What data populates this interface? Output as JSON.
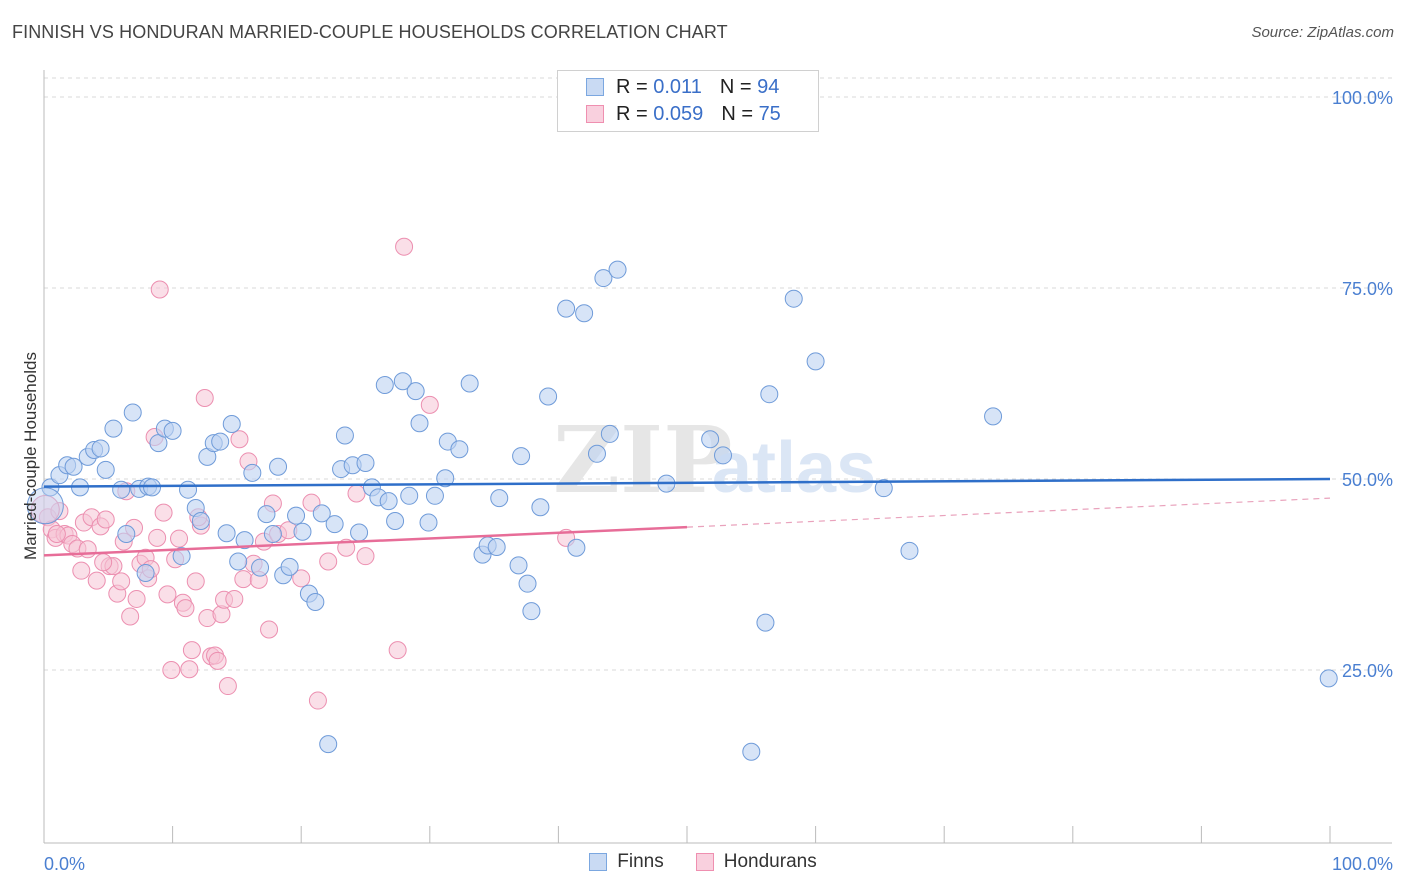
{
  "title": "FINNISH VS HONDURAN MARRIED-COUPLE HOUSEHOLDS CORRELATION CHART",
  "source": "Source: ZipAtlas.com",
  "watermark": {
    "zip": "ZIP",
    "atlas": "atlas"
  },
  "legend": {
    "rows": [
      {
        "r_label": "R = ",
        "r_value": "0.011",
        "n_label": "N = ",
        "n_value": "94",
        "color": "#7ba7e0"
      },
      {
        "r_label": "R = ",
        "r_value": "0.059",
        "n_label": "N = ",
        "n_value": "75",
        "color": "#ef8fb0"
      }
    ]
  },
  "bottom_legend": [
    {
      "label": "Finns",
      "color": "#7ba7e0"
    },
    {
      "label": "Hondurans",
      "color": "#ef8fb0"
    }
  ],
  "chart_data": {
    "type": "scatter",
    "title": "FINNISH VS HONDURAN MARRIED-COUPLE HOUSEHOLDS CORRELATION CHART",
    "xlabel": "",
    "ylabel": "Married-couple Households",
    "xlim": [
      0,
      100
    ],
    "ylim": [
      0,
      105
    ],
    "x_tick_labels": [
      "0.0%",
      "100.0%"
    ],
    "y_ticks": [
      25,
      50,
      75,
      100
    ],
    "y_tick_labels": [
      "25.0%",
      "50.0%",
      "75.0%",
      "100.0%"
    ],
    "grid": "horizontal dashed",
    "legend_position": "top-center",
    "series": [
      {
        "name": "Finns",
        "color": "#7ba7e0",
        "trend": {
          "x0": 0,
          "y0": 49.0,
          "x1": 100,
          "y1": 50.0
        },
        "points": [
          [
            0.5,
            48.9
          ],
          [
            1.2,
            50.5
          ],
          [
            1.8,
            51.8
          ],
          [
            2.3,
            51.6
          ],
          [
            2.8,
            48.9
          ],
          [
            3.4,
            52.9
          ],
          [
            3.9,
            53.8
          ],
          [
            4.4,
            54.0
          ],
          [
            4.8,
            51.2
          ],
          [
            5.4,
            56.6
          ],
          [
            6.0,
            48.6
          ],
          [
            6.4,
            42.8
          ],
          [
            6.9,
            58.7
          ],
          [
            7.4,
            48.7
          ],
          [
            7.9,
            37.7
          ],
          [
            8.1,
            49.0
          ],
          [
            8.4,
            48.9
          ],
          [
            8.9,
            54.7
          ],
          [
            9.4,
            56.6
          ],
          [
            10.0,
            56.3
          ],
          [
            10.7,
            39.9
          ],
          [
            11.2,
            48.6
          ],
          [
            11.8,
            46.2
          ],
          [
            12.2,
            44.5
          ],
          [
            12.7,
            52.9
          ],
          [
            13.2,
            54.7
          ],
          [
            13.7,
            54.9
          ],
          [
            14.2,
            42.9
          ],
          [
            14.6,
            57.2
          ],
          [
            15.1,
            39.2
          ],
          [
            15.6,
            42.0
          ],
          [
            16.2,
            50.8
          ],
          [
            16.8,
            38.4
          ],
          [
            17.3,
            45.4
          ],
          [
            17.8,
            42.8
          ],
          [
            18.2,
            51.6
          ],
          [
            18.6,
            37.4
          ],
          [
            19.1,
            38.5
          ],
          [
            19.6,
            45.2
          ],
          [
            20.1,
            43.1
          ],
          [
            20.6,
            35.0
          ],
          [
            21.1,
            33.9
          ],
          [
            21.6,
            45.5
          ],
          [
            22.1,
            15.3
          ],
          [
            22.6,
            44.1
          ],
          [
            23.1,
            51.3
          ],
          [
            23.4,
            55.7
          ],
          [
            24.0,
            51.8
          ],
          [
            24.5,
            43.0
          ],
          [
            25.0,
            52.1
          ],
          [
            25.5,
            48.9
          ],
          [
            26.0,
            47.6
          ],
          [
            26.5,
            62.3
          ],
          [
            26.8,
            47.1
          ],
          [
            27.3,
            44.5
          ],
          [
            27.9,
            62.8
          ],
          [
            28.4,
            47.8
          ],
          [
            28.9,
            61.5
          ],
          [
            29.2,
            57.3
          ],
          [
            29.9,
            44.3
          ],
          [
            30.4,
            47.8
          ],
          [
            31.2,
            50.1
          ],
          [
            31.4,
            54.9
          ],
          [
            32.3,
            53.9
          ],
          [
            33.1,
            62.5
          ],
          [
            34.1,
            40.1
          ],
          [
            34.5,
            41.3
          ],
          [
            35.2,
            41.1
          ],
          [
            35.4,
            47.5
          ],
          [
            36.9,
            38.7
          ],
          [
            37.1,
            53.0
          ],
          [
            37.6,
            36.3
          ],
          [
            37.9,
            32.7
          ],
          [
            38.6,
            46.3
          ],
          [
            39.2,
            60.8
          ],
          [
            40.6,
            72.3
          ],
          [
            41.4,
            41.0
          ],
          [
            42.0,
            71.7
          ],
          [
            43.0,
            53.3
          ],
          [
            43.5,
            76.3
          ],
          [
            44.0,
            55.9
          ],
          [
            44.6,
            77.4
          ],
          [
            48.4,
            49.4
          ],
          [
            51.8,
            55.2
          ],
          [
            52.8,
            53.1
          ],
          [
            55.0,
            14.3
          ],
          [
            56.1,
            31.2
          ],
          [
            56.4,
            61.1
          ],
          [
            58.3,
            73.6
          ],
          [
            60.0,
            65.4
          ],
          [
            65.3,
            48.8
          ],
          [
            67.3,
            40.6
          ],
          [
            73.8,
            58.2
          ],
          [
            99.9,
            23.9
          ]
        ]
      },
      {
        "name": "Hondurans",
        "color": "#ef8fb0",
        "trend": {
          "x0": 0,
          "y0": 40.0,
          "x1": 50,
          "y1": 43.7
        },
        "trend_dashed": {
          "x0": 50,
          "y0": 43.7,
          "x1": 100,
          "y1": 47.5
        },
        "points": [
          [
            0.3,
            45.0
          ],
          [
            0.6,
            43.4
          ],
          [
            0.9,
            42.3
          ],
          [
            1.2,
            45.8
          ],
          [
            1.6,
            42.8
          ],
          [
            1.9,
            42.6
          ],
          [
            2.2,
            41.5
          ],
          [
            2.6,
            40.9
          ],
          [
            2.9,
            38.0
          ],
          [
            3.1,
            44.3
          ],
          [
            3.4,
            40.8
          ],
          [
            3.7,
            45.0
          ],
          [
            4.1,
            36.7
          ],
          [
            4.4,
            43.8
          ],
          [
            4.8,
            44.7
          ],
          [
            5.1,
            38.6
          ],
          [
            5.4,
            38.6
          ],
          [
            5.7,
            35.0
          ],
          [
            6.0,
            36.6
          ],
          [
            6.4,
            48.4
          ],
          [
            6.7,
            32.0
          ],
          [
            7.0,
            43.6
          ],
          [
            7.2,
            34.3
          ],
          [
            7.5,
            38.9
          ],
          [
            7.9,
            39.7
          ],
          [
            8.1,
            37.0
          ],
          [
            8.3,
            38.2
          ],
          [
            8.6,
            55.5
          ],
          [
            8.8,
            42.3
          ],
          [
            9.0,
            74.8
          ],
          [
            9.3,
            45.6
          ],
          [
            9.6,
            34.9
          ],
          [
            9.9,
            25.0
          ],
          [
            10.2,
            39.5
          ],
          [
            10.5,
            42.2
          ],
          [
            10.8,
            33.8
          ],
          [
            11.0,
            33.1
          ],
          [
            11.3,
            25.1
          ],
          [
            11.5,
            27.6
          ],
          [
            11.8,
            36.6
          ],
          [
            12.2,
            43.9
          ],
          [
            12.5,
            60.6
          ],
          [
            12.7,
            31.8
          ],
          [
            13.0,
            26.8
          ],
          [
            13.3,
            26.9
          ],
          [
            13.5,
            26.2
          ],
          [
            13.8,
            32.3
          ],
          [
            14.0,
            34.2
          ],
          [
            14.3,
            22.9
          ],
          [
            14.8,
            34.3
          ],
          [
            15.2,
            55.2
          ],
          [
            15.5,
            36.9
          ],
          [
            15.9,
            52.3
          ],
          [
            16.3,
            38.9
          ],
          [
            16.7,
            36.8
          ],
          [
            17.1,
            41.8
          ],
          [
            17.5,
            30.3
          ],
          [
            17.8,
            46.8
          ],
          [
            18.2,
            42.8
          ],
          [
            19.0,
            43.3
          ],
          [
            20.0,
            37.0
          ],
          [
            20.8,
            46.9
          ],
          [
            21.3,
            21.0
          ],
          [
            22.1,
            39.2
          ],
          [
            23.5,
            41.0
          ],
          [
            24.3,
            48.1
          ],
          [
            25.0,
            39.9
          ],
          [
            27.5,
            27.6
          ],
          [
            28.0,
            80.4
          ],
          [
            30.0,
            59.7
          ],
          [
            40.6,
            42.3
          ],
          [
            4.6,
            39.1
          ],
          [
            1.0,
            42.8
          ],
          [
            12.0,
            45.0
          ],
          [
            6.2,
            41.8
          ]
        ]
      }
    ]
  }
}
